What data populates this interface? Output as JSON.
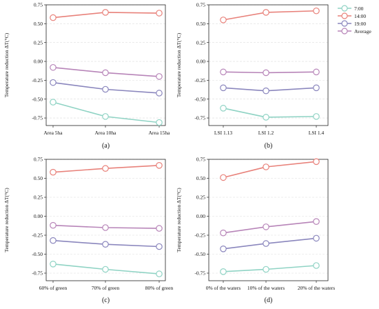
{
  "chart_data": [
    {
      "type": "line",
      "panel_label": "(a)",
      "ylabel": "Temperature reduction ΔT(°C)",
      "categories": [
        "Area 5ha",
        "Area 10ha",
        "Area 15ha"
      ],
      "ylim": [
        -0.85,
        0.75
      ],
      "yticks": [
        "0.75",
        "0.50",
        "0.25",
        "0.00",
        "-0.25",
        "-0.50",
        "-0.75"
      ],
      "grid": true,
      "series": [
        {
          "name": "7:00",
          "values": [
            -0.54,
            -0.73,
            -0.81
          ]
        },
        {
          "name": "14:00",
          "values": [
            0.58,
            0.65,
            0.64
          ]
        },
        {
          "name": "19:00",
          "values": [
            -0.28,
            -0.37,
            -0.42
          ]
        },
        {
          "name": "Average",
          "values": [
            -0.08,
            -0.15,
            -0.2
          ]
        }
      ]
    },
    {
      "type": "line",
      "panel_label": "(b)",
      "ylabel": "Temperature reduction ΔT(°C)",
      "categories": [
        "LSI 1.13",
        "LSI  1.2",
        "LSI  1.4"
      ],
      "ylim": [
        -0.85,
        0.75
      ],
      "yticks": [
        "0.75",
        "0.50",
        "0.25",
        "0.00",
        "-0.25",
        "-0.50",
        "-0.75"
      ],
      "grid": true,
      "legend_position": "top-right outside",
      "series": [
        {
          "name": "7:00",
          "values": [
            -0.62,
            -0.74,
            -0.73
          ]
        },
        {
          "name": "14:00",
          "values": [
            0.55,
            0.65,
            0.67
          ]
        },
        {
          "name": "19:00",
          "values": [
            -0.35,
            -0.39,
            -0.35
          ]
        },
        {
          "name": "Average",
          "values": [
            -0.14,
            -0.15,
            -0.14
          ]
        }
      ]
    },
    {
      "type": "line",
      "panel_label": "(c)",
      "ylabel": "Temperature reduction ΔT(°C)",
      "categories": [
        "60% of green",
        "70% of green",
        "80% of green"
      ],
      "ylim": [
        -0.85,
        0.75
      ],
      "yticks": [
        "0.75",
        "0.50",
        "0.25",
        "0.00",
        "-0.25",
        "-0.50",
        "-0.75"
      ],
      "grid": true,
      "series": [
        {
          "name": "7:00",
          "values": [
            -0.63,
            -0.7,
            -0.76
          ]
        },
        {
          "name": "14:00",
          "values": [
            0.58,
            0.63,
            0.67
          ]
        },
        {
          "name": "19:00",
          "values": [
            -0.32,
            -0.37,
            -0.4
          ]
        },
        {
          "name": "Average",
          "values": [
            -0.12,
            -0.15,
            -0.16
          ]
        }
      ]
    },
    {
      "type": "line",
      "panel_label": "(d)",
      "ylabel": "Temperature reduction ΔT(°C)",
      "categories": [
        "0% of the waters",
        "10% of the waters",
        "20% of the waters"
      ],
      "ylim": [
        -0.85,
        0.75
      ],
      "yticks": [
        "0.75",
        "0.50",
        "0.25",
        "0.00",
        "-0.25",
        "-0.50",
        "-0.75"
      ],
      "grid": true,
      "series": [
        {
          "name": "7:00",
          "values": [
            -0.73,
            -0.7,
            -0.65
          ]
        },
        {
          "name": "14:00",
          "values": [
            0.51,
            0.65,
            0.72
          ]
        },
        {
          "name": "19:00",
          "values": [
            -0.43,
            -0.36,
            -0.29
          ]
        },
        {
          "name": "Average",
          "values": [
            -0.22,
            -0.14,
            -0.07
          ]
        }
      ]
    }
  ],
  "legend": [
    "7:00",
    "14:00",
    "19:00",
    "Average"
  ],
  "colors": {
    "7:00": "#8fd3c4",
    "14:00": "#e8817a",
    "19:00": "#8a86bd",
    "Average": "#b784b8",
    "axis": "#222222",
    "grid": "#dddddd"
  }
}
